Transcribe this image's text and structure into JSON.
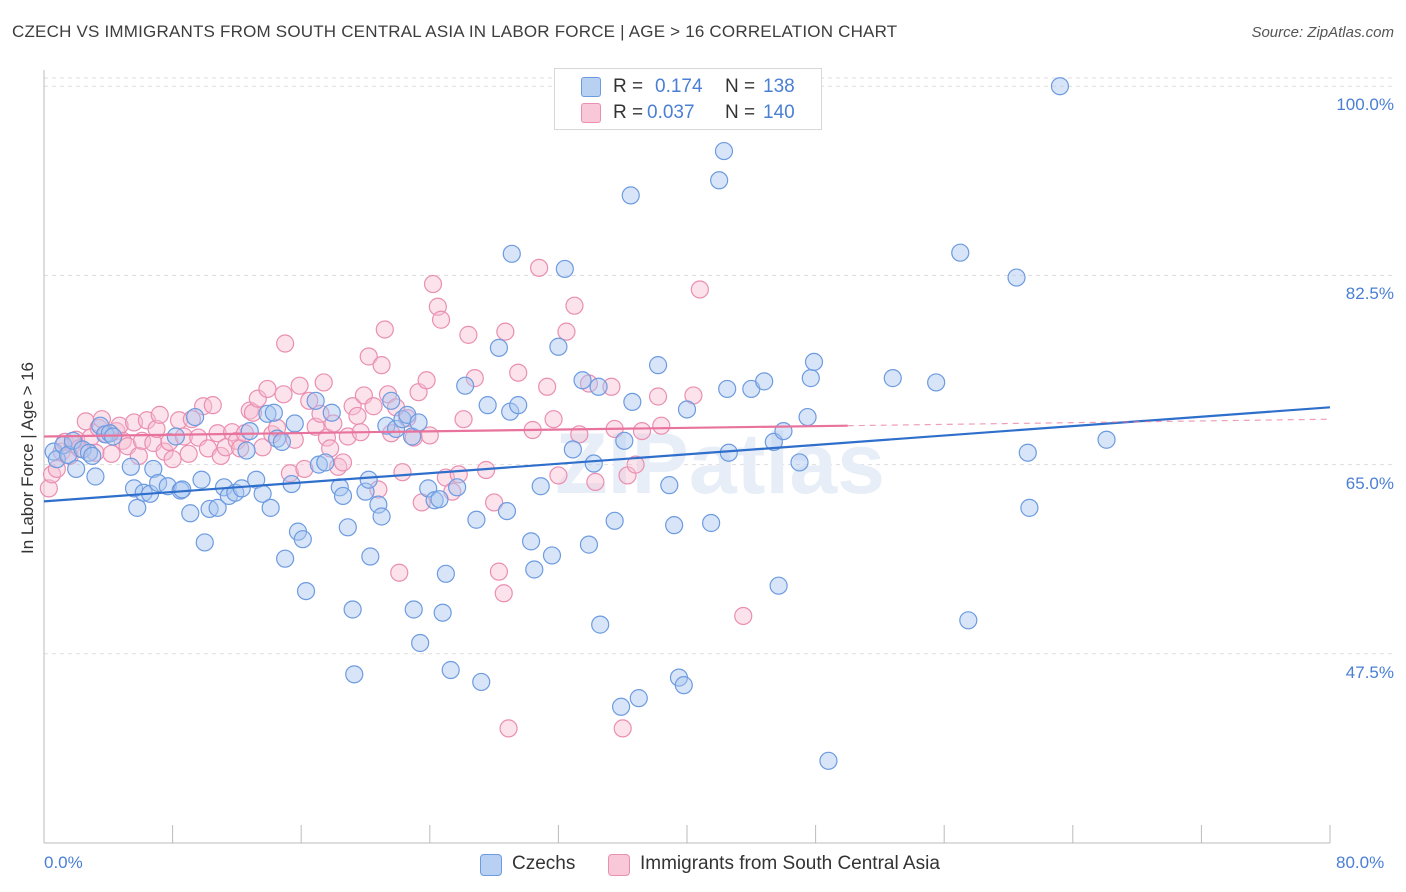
{
  "title": "CZECH VS IMMIGRANTS FROM SOUTH CENTRAL ASIA IN LABOR FORCE | AGE > 16 CORRELATION CHART",
  "source": "Source: ZipAtlas.com",
  "watermark": "ZIPatlas",
  "colors": {
    "blue_fill": "#a9c6ef",
    "blue_stroke": "#6d9be0",
    "blue_line": "#2f6fcc",
    "pink_fill": "#f6bfd2",
    "pink_stroke": "#ea8fb1",
    "pink_line": "#e8739c",
    "axis_text": "#4a7fd4",
    "grid": "#dddddd"
  },
  "stats": {
    "rows": [
      {
        "r_label": "R =",
        "r_value": "0.174",
        "n_label": "N =",
        "n_value": "138"
      },
      {
        "r_label": "R =",
        "r_value": "0.037",
        "n_label": "N =",
        "n_value": "140"
      }
    ]
  },
  "legend": {
    "items": [
      "Czechs",
      "Immigrants from South Central Asia"
    ]
  },
  "chart_data": {
    "type": "scatter",
    "title": "CZECH VS IMMIGRANTS FROM SOUTH CENTRAL ASIA IN LABOR FORCE | AGE > 16 CORRELATION CHART",
    "xlabel": "",
    "ylabel": "In Labor Force | Age > 16",
    "xlim": [
      0,
      80
    ],
    "ylim": [
      30,
      101.5
    ],
    "x_tick_labels": [
      "0.0%",
      "80.0%"
    ],
    "y_ticks": [
      47.5,
      65.0,
      82.5,
      100.0
    ],
    "y_tick_labels": [
      "47.5%",
      "65.0%",
      "82.5%",
      "100.0%"
    ],
    "grid": true,
    "legend_position": "bottom",
    "series": [
      {
        "name": "Czechs",
        "color": "#6d9be0",
        "trend": {
          "x": [
            0,
            80
          ],
          "y": [
            61.6,
            70.3
          ]
        },
        "points": [
          [
            0.6,
            66.2
          ],
          [
            0.8,
            65.5
          ],
          [
            1.2,
            66.8
          ],
          [
            1.5,
            65.9
          ],
          [
            1.8,
            67.2
          ],
          [
            2.0,
            64.6
          ],
          [
            2.4,
            66.4
          ],
          [
            2.8,
            66.1
          ],
          [
            3.0,
            65.8
          ],
          [
            3.2,
            63.9
          ],
          [
            3.5,
            68.6
          ],
          [
            3.8,
            67.8
          ],
          [
            4.1,
            67.9
          ],
          [
            4.3,
            67.6
          ],
          [
            5.4,
            64.8
          ],
          [
            5.6,
            62.8
          ],
          [
            5.8,
            61.0
          ],
          [
            6.2,
            62.4
          ],
          [
            6.6,
            62.3
          ],
          [
            6.8,
            64.6
          ],
          [
            7.1,
            63.3
          ],
          [
            7.7,
            63.0
          ],
          [
            8.2,
            67.6
          ],
          [
            8.5,
            62.6
          ],
          [
            8.6,
            62.7
          ],
          [
            9.1,
            60.5
          ],
          [
            9.4,
            69.4
          ],
          [
            9.8,
            63.6
          ],
          [
            10.0,
            57.8
          ],
          [
            10.3,
            60.9
          ],
          [
            10.8,
            61.0
          ],
          [
            11.2,
            62.9
          ],
          [
            11.5,
            62.1
          ],
          [
            11.9,
            62.4
          ],
          [
            12.3,
            62.8
          ],
          [
            12.6,
            66.3
          ],
          [
            12.8,
            68.1
          ],
          [
            13.2,
            63.6
          ],
          [
            13.6,
            62.3
          ],
          [
            13.9,
            69.7
          ],
          [
            14.1,
            61.0
          ],
          [
            14.3,
            69.8
          ],
          [
            14.5,
            67.4
          ],
          [
            14.8,
            67.1
          ],
          [
            15.0,
            56.3
          ],
          [
            15.4,
            63.2
          ],
          [
            15.6,
            68.8
          ],
          [
            15.8,
            58.8
          ],
          [
            16.1,
            58.1
          ],
          [
            16.3,
            53.3
          ],
          [
            16.9,
            70.9
          ],
          [
            17.1,
            65.0
          ],
          [
            17.5,
            65.2
          ],
          [
            17.9,
            69.8
          ],
          [
            18.4,
            62.9
          ],
          [
            18.6,
            62.1
          ],
          [
            18.9,
            59.2
          ],
          [
            19.2,
            51.6
          ],
          [
            19.3,
            45.6
          ],
          [
            20.0,
            62.5
          ],
          [
            20.2,
            63.6
          ],
          [
            20.3,
            56.5
          ],
          [
            20.8,
            61.3
          ],
          [
            21.0,
            60.2
          ],
          [
            21.3,
            68.6
          ],
          [
            21.6,
            70.9
          ],
          [
            21.9,
            68.3
          ],
          [
            22.3,
            69.2
          ],
          [
            22.6,
            69.6
          ],
          [
            22.9,
            67.6
          ],
          [
            23.3,
            68.9
          ],
          [
            23.0,
            51.6
          ],
          [
            23.4,
            48.5
          ],
          [
            23.9,
            62.8
          ],
          [
            24.3,
            61.7
          ],
          [
            24.6,
            61.8
          ],
          [
            24.8,
            51.3
          ],
          [
            25.0,
            54.9
          ],
          [
            25.3,
            46.0
          ],
          [
            25.7,
            62.9
          ],
          [
            26.2,
            72.3
          ],
          [
            26.9,
            59.9
          ],
          [
            27.2,
            44.9
          ],
          [
            27.6,
            70.5
          ],
          [
            28.3,
            75.8
          ],
          [
            28.8,
            60.7
          ],
          [
            29.0,
            69.9
          ],
          [
            29.1,
            84.5
          ],
          [
            29.5,
            70.5
          ],
          [
            30.3,
            57.9
          ],
          [
            30.5,
            55.3
          ],
          [
            30.9,
            63.0
          ],
          [
            31.6,
            56.6
          ],
          [
            32.0,
            75.9
          ],
          [
            32.4,
            83.1
          ],
          [
            32.9,
            66.4
          ],
          [
            33.5,
            72.8
          ],
          [
            33.9,
            57.6
          ],
          [
            34.2,
            65.1
          ],
          [
            34.5,
            72.2
          ],
          [
            34.6,
            50.2
          ],
          [
            35.5,
            59.8
          ],
          [
            35.9,
            42.6
          ],
          [
            36.1,
            67.2
          ],
          [
            36.5,
            89.9
          ],
          [
            36.6,
            70.8
          ],
          [
            37.0,
            43.4
          ],
          [
            38.2,
            74.2
          ],
          [
            38.9,
            63.1
          ],
          [
            39.2,
            59.4
          ],
          [
            39.5,
            45.3
          ],
          [
            39.8,
            44.6
          ],
          [
            40.0,
            70.1
          ],
          [
            41.5,
            59.6
          ],
          [
            42.0,
            91.3
          ],
          [
            42.3,
            94.0
          ],
          [
            42.6,
            66.1
          ],
          [
            42.5,
            72.0
          ],
          [
            44.0,
            72.0
          ],
          [
            44.8,
            72.7
          ],
          [
            45.4,
            67.1
          ],
          [
            45.7,
            53.8
          ],
          [
            46.0,
            68.1
          ],
          [
            47.0,
            65.2
          ],
          [
            47.7,
            73.0
          ],
          [
            47.9,
            74.5
          ],
          [
            47.5,
            69.4
          ],
          [
            48.8,
            37.6
          ],
          [
            52.8,
            73.0
          ],
          [
            55.5,
            72.6
          ],
          [
            57.0,
            84.6
          ],
          [
            57.5,
            50.6
          ],
          [
            60.5,
            82.3
          ],
          [
            61.2,
            66.1
          ],
          [
            61.3,
            61.0
          ],
          [
            63.2,
            100.0
          ],
          [
            66.1,
            67.3
          ]
        ]
      },
      {
        "name": "Immigrants from South Central Asia",
        "color": "#ea8fb1",
        "trend": {
          "x": [
            0,
            50
          ],
          "y": [
            67.6,
            68.6
          ]
        },
        "points": [
          [
            0.3,
            62.8
          ],
          [
            0.5,
            64.1
          ],
          [
            0.8,
            64.6
          ],
          [
            1.1,
            66.2
          ],
          [
            1.3,
            67.1
          ],
          [
            1.6,
            65.8
          ],
          [
            1.8,
            66.9
          ],
          [
            2.0,
            67.3
          ],
          [
            2.2,
            66.5
          ],
          [
            2.6,
            69.0
          ],
          [
            2.9,
            67.5
          ],
          [
            3.2,
            66.1
          ],
          [
            3.4,
            68.4
          ],
          [
            3.6,
            69.2
          ],
          [
            3.9,
            67.8
          ],
          [
            4.2,
            66.0
          ],
          [
            4.5,
            68.1
          ],
          [
            4.7,
            68.6
          ],
          [
            4.9,
            67.2
          ],
          [
            5.2,
            66.7
          ],
          [
            5.6,
            68.9
          ],
          [
            5.9,
            65.8
          ],
          [
            6.1,
            67.2
          ],
          [
            6.4,
            69.1
          ],
          [
            6.8,
            67.0
          ],
          [
            7.0,
            68.3
          ],
          [
            7.2,
            69.6
          ],
          [
            7.5,
            66.2
          ],
          [
            7.8,
            67.1
          ],
          [
            8.0,
            65.5
          ],
          [
            8.4,
            69.1
          ],
          [
            8.7,
            67.6
          ],
          [
            9.0,
            66.0
          ],
          [
            9.2,
            69.2
          ],
          [
            9.6,
            67.5
          ],
          [
            9.9,
            70.4
          ],
          [
            10.2,
            66.5
          ],
          [
            10.5,
            70.5
          ],
          [
            10.8,
            67.9
          ],
          [
            11.0,
            65.8
          ],
          [
            11.3,
            66.6
          ],
          [
            11.7,
            68.0
          ],
          [
            12.0,
            67.2
          ],
          [
            12.2,
            66.5
          ],
          [
            12.5,
            67.9
          ],
          [
            12.8,
            70.0
          ],
          [
            13.0,
            69.8
          ],
          [
            13.3,
            71.1
          ],
          [
            13.6,
            66.6
          ],
          [
            13.9,
            72.0
          ],
          [
            14.2,
            67.8
          ],
          [
            14.5,
            68.4
          ],
          [
            14.9,
            71.5
          ],
          [
            15.0,
            76.2
          ],
          [
            15.3,
            64.2
          ],
          [
            15.6,
            67.3
          ],
          [
            15.9,
            72.3
          ],
          [
            16.2,
            64.6
          ],
          [
            16.5,
            70.9
          ],
          [
            16.9,
            68.5
          ],
          [
            17.2,
            69.7
          ],
          [
            17.4,
            72.6
          ],
          [
            17.6,
            67.5
          ],
          [
            17.8,
            66.5
          ],
          [
            18.0,
            68.8
          ],
          [
            18.3,
            64.8
          ],
          [
            18.6,
            65.2
          ],
          [
            18.9,
            67.6
          ],
          [
            19.2,
            70.4
          ],
          [
            19.5,
            69.5
          ],
          [
            19.7,
            68.0
          ],
          [
            19.9,
            71.4
          ],
          [
            20.2,
            75.0
          ],
          [
            20.5,
            70.4
          ],
          [
            20.8,
            62.7
          ],
          [
            21.0,
            74.2
          ],
          [
            21.2,
            77.5
          ],
          [
            21.4,
            71.5
          ],
          [
            21.6,
            67.9
          ],
          [
            21.9,
            70.3
          ],
          [
            22.1,
            55.0
          ],
          [
            22.3,
            64.3
          ],
          [
            22.6,
            69.3
          ],
          [
            23.0,
            67.5
          ],
          [
            23.3,
            71.7
          ],
          [
            23.5,
            61.5
          ],
          [
            23.8,
            72.8
          ],
          [
            24.0,
            67.7
          ],
          [
            24.2,
            81.7
          ],
          [
            24.5,
            79.6
          ],
          [
            24.7,
            78.4
          ],
          [
            25.0,
            63.8
          ],
          [
            25.4,
            62.5
          ],
          [
            25.8,
            64.1
          ],
          [
            26.1,
            69.2
          ],
          [
            26.4,
            77.0
          ],
          [
            26.8,
            73.0
          ],
          [
            27.5,
            64.5
          ],
          [
            28.0,
            61.5
          ],
          [
            28.3,
            55.1
          ],
          [
            28.6,
            53.1
          ],
          [
            28.7,
            77.3
          ],
          [
            28.9,
            40.6
          ],
          [
            29.5,
            73.5
          ],
          [
            30.4,
            68.2
          ],
          [
            30.8,
            83.2
          ],
          [
            31.3,
            72.2
          ],
          [
            31.7,
            69.2
          ],
          [
            32.0,
            64.0
          ],
          [
            32.5,
            77.3
          ],
          [
            33.0,
            79.7
          ],
          [
            33.3,
            67.8
          ],
          [
            33.9,
            72.5
          ],
          [
            34.3,
            63.4
          ],
          [
            35.3,
            72.2
          ],
          [
            35.5,
            68.3
          ],
          [
            36.0,
            40.6
          ],
          [
            36.3,
            64.0
          ],
          [
            36.8,
            65.0
          ],
          [
            37.2,
            68.1
          ],
          [
            38.2,
            71.3
          ],
          [
            38.4,
            68.6
          ],
          [
            40.4,
            71.4
          ],
          [
            40.8,
            81.2
          ],
          [
            43.5,
            51.0
          ]
        ]
      }
    ]
  }
}
